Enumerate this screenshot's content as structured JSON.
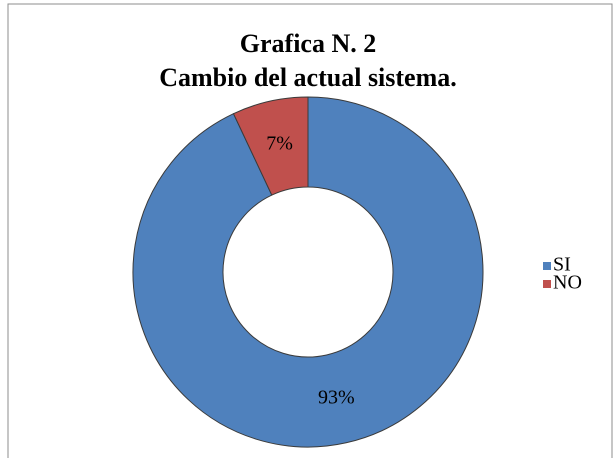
{
  "chart_data": {
    "type": "donut",
    "title": "Grafica N. 2",
    "subtitle": "Cambio del actual sistema.",
    "categories": [
      "SI",
      "NO"
    ],
    "values": [
      93,
      7
    ],
    "value_labels": [
      "93%",
      "7%"
    ],
    "colors": [
      "#4f81bd",
      "#c0504d"
    ],
    "legend": "right"
  }
}
